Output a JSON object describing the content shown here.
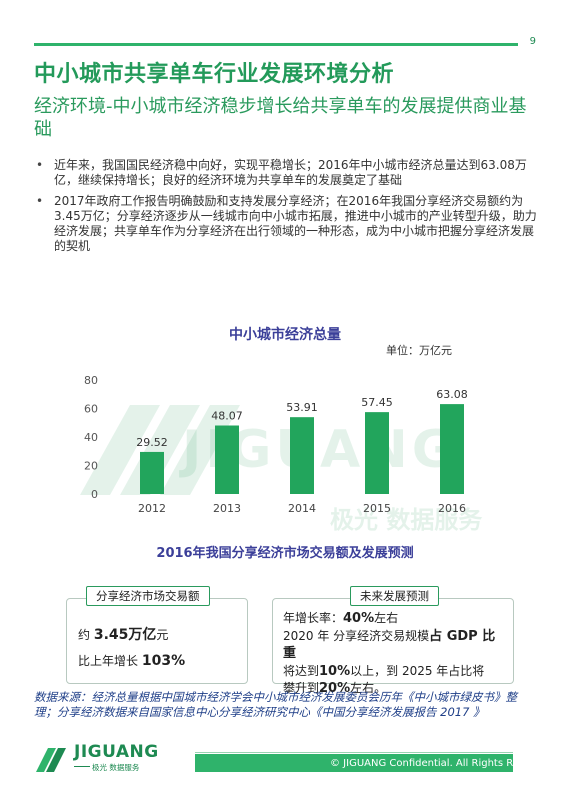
{
  "page": {
    "number": "9",
    "title": "中小城市共享单车行业发展环境分析",
    "subtitle": "经济环境-中小城市经济稳步增长给共享单车的发展提供商业基础"
  },
  "bullets": [
    "近年来，我国国民经济稳中向好，实现平稳增长；2016年中小城市经济总量达到63.08万亿，继续保持增长；良好的经济环境为共享单车的发展奠定了基础",
    "2017年政府工作报告明确鼓励和支持发展分享经济；在2016年我国分享经济交易额约为3.45万亿；分享经济逐步从一线城市向中小城市拓展，推进中小城市的产业转型升级，助力经济发展；共享单车作为分享经济在出行领域的一种形态，成为中小城市把握分享经济发展的契机"
  ],
  "chart_data": {
    "type": "bar",
    "title": "中小城市经济总量",
    "unit_label": "单位：万亿元",
    "categories": [
      "2012",
      "2013",
      "2014",
      "2015",
      "2016"
    ],
    "values": [
      29.52,
      48.07,
      53.91,
      57.45,
      63.08
    ],
    "value_labels": [
      "29.52",
      "48.07",
      "53.91",
      "57.45",
      "63.08"
    ],
    "ylim": [
      0,
      80
    ],
    "yticks": [
      "0",
      "20",
      "40",
      "60",
      "80"
    ],
    "grid": false,
    "bar_color": "#22a55c"
  },
  "section2": {
    "title": "2016年我国分享经济市场交易额及发展预测",
    "box1": {
      "tag": "分享经济市场交易额",
      "line1_prefix": "约",
      "line1_value": "3.45万亿",
      "line1_suffix": "元",
      "line2_prefix": "比上年增长",
      "line2_value": "103%"
    },
    "box2": {
      "tag": "未来发展预测",
      "l1_prefix": "年增长率：",
      "l1_value": "40%",
      "l1_suffix": "左右",
      "l2_prefix": "2020 年 分享经济交易规模",
      "l2_bold": "占 GDP 比重",
      "l3_prefix": "将达到",
      "l3_value": "10%",
      "l3_suffix": "以上，到 2025 年占比将",
      "l4_prefix": "攀升到",
      "l4_value": "20%",
      "l4_suffix": "左右。"
    }
  },
  "source": "数据来源：经济总量根据中国城市经济学会中小城市经济发展委员会历年《中小城市绿皮书》整理；分享经济数据来自国家信息中心分享经济研究中心《中国分享经济发展报告 2017 》",
  "footer": {
    "logo_name": "JIGUANG",
    "logo_sub": "极光 数据服务",
    "copyright": "© JIGUANG Confidential. All Rights Reserved."
  },
  "watermark": {
    "name": "JIGUANG",
    "sub": "极光 数据服务"
  },
  "colors": {
    "accent": "#2fb36b",
    "title": "#239a5a",
    "chart_title": "#3b3f99",
    "source": "#1f3f88"
  }
}
